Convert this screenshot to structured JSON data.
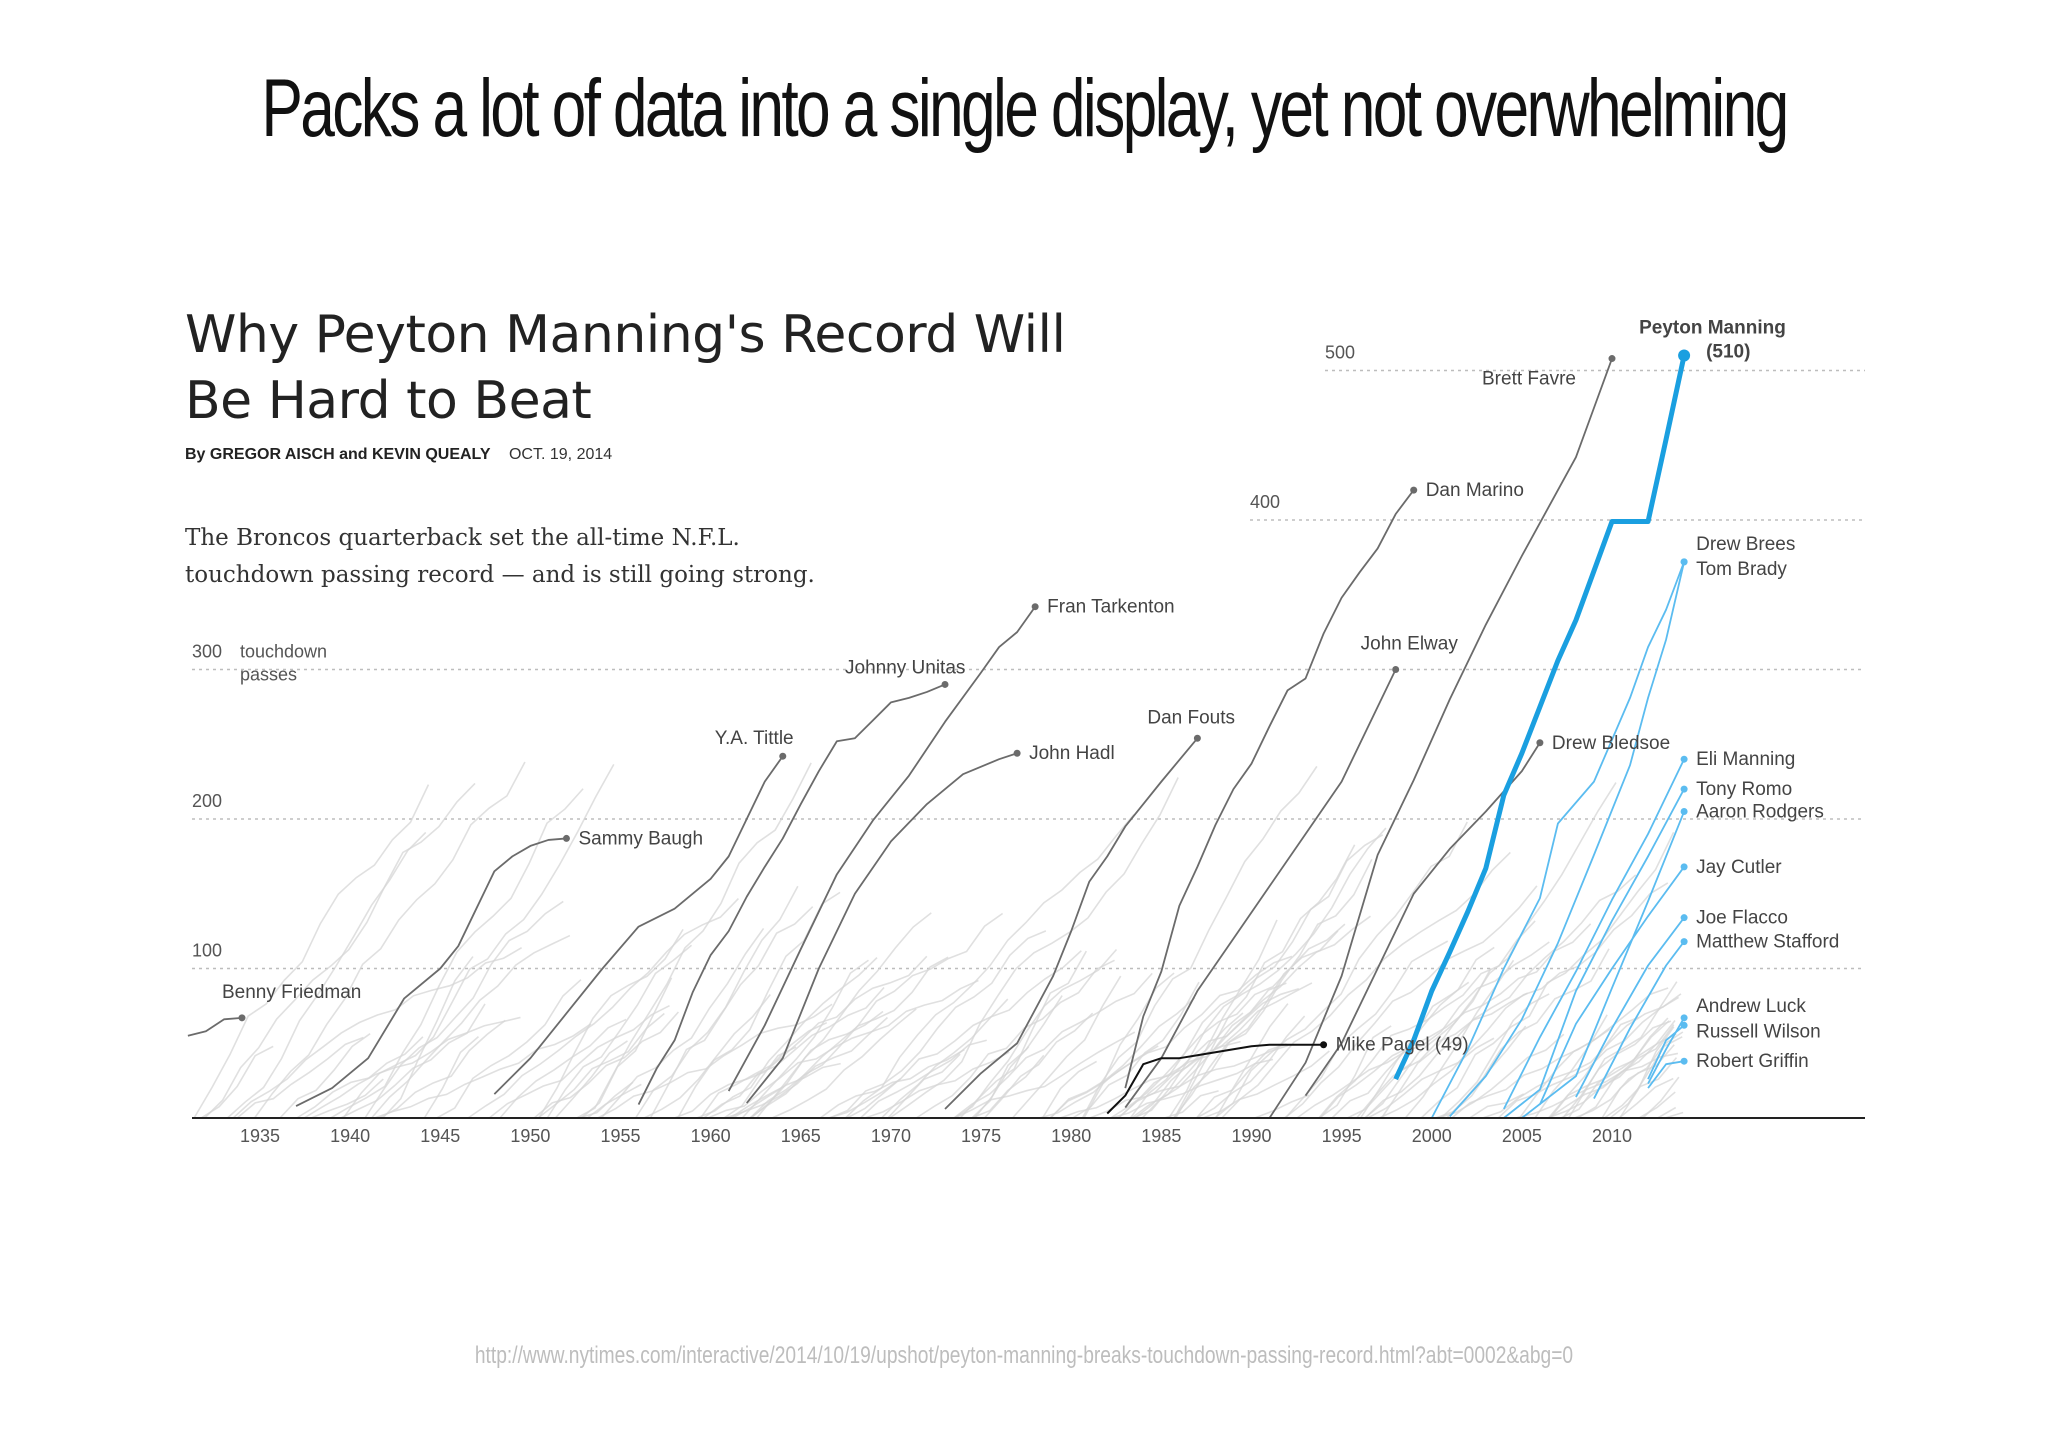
{
  "slide": {
    "title": "Packs a lot of data into a single display, yet not overwhelming",
    "source_url": "http://www.nytimes.com/interactive/2014/10/19/upshot/peyton-manning-breaks-touchdown-passing-record.html?abt=0002&abg=0"
  },
  "graphic": {
    "headline": "Why Peyton Manning's Record Will Be Hard to Beat",
    "byline_names": "By GREGOR AISCH and KEVIN QUEALY",
    "byline_date": "OCT. 19, 2014",
    "dek": "The Broncos quarterback set the all-time N.F.L. touchdown passing record — and is still going strong."
  },
  "chart_data": {
    "type": "line",
    "title": "Why Peyton Manning's Record Will Be Hard to Beat",
    "ylabel": "touchdown passes",
    "xlim": [
      1931,
      2025
    ],
    "ylim": [
      0,
      510
    ],
    "x_ticks": [
      1935,
      1940,
      1945,
      1950,
      1955,
      1960,
      1965,
      1970,
      1975,
      1980,
      1985,
      1990,
      1995,
      2000,
      2005,
      2010
    ],
    "y_ticks": [
      100,
      200,
      300,
      400,
      500
    ],
    "grid": true,
    "colors": {
      "highlight": "#1a9fe0",
      "active": "#5bbcf0",
      "notable": "#6b6b6b",
      "background": "#d6d6d6",
      "focus": "#111111"
    },
    "series": [
      {
        "name": "Benny Friedman",
        "label": "Benny Friedman",
        "group": "notable",
        "x": [
          1931,
          1932,
          1933,
          1934
        ],
        "y": [
          55,
          58,
          66,
          67
        ]
      },
      {
        "name": "Sammy Baugh",
        "label": "Sammy Baugh",
        "group": "notable",
        "x": [
          1937,
          1939,
          1941,
          1943,
          1945,
          1946,
          1947,
          1948,
          1949,
          1950,
          1951,
          1952
        ],
        "y": [
          8,
          20,
          40,
          80,
          100,
          115,
          140,
          165,
          175,
          182,
          186,
          187
        ]
      },
      {
        "name": "Y.A. Tittle",
        "label": "Y.A. Tittle",
        "group": "notable",
        "x": [
          1948,
          1950,
          1952,
          1954,
          1956,
          1958,
          1960,
          1961,
          1962,
          1963,
          1964
        ],
        "y": [
          16,
          40,
          70,
          100,
          128,
          140,
          160,
          175,
          200,
          225,
          242
        ]
      },
      {
        "name": "Johnny Unitas",
        "label": "Johnny Unitas",
        "group": "notable",
        "x": [
          1956,
          1957,
          1958,
          1959,
          1960,
          1961,
          1962,
          1963,
          1964,
          1965,
          1966,
          1967,
          1968,
          1969,
          1970,
          1971,
          1972,
          1973
        ],
        "y": [
          9,
          33,
          52,
          84,
          109,
          125,
          148,
          168,
          187,
          210,
          232,
          252,
          254,
          266,
          278,
          281,
          285,
          290
        ]
      },
      {
        "name": "John Hadl",
        "label": "John Hadl",
        "group": "notable",
        "x": [
          1962,
          1964,
          1966,
          1968,
          1970,
          1972,
          1974,
          1976,
          1977
        ],
        "y": [
          10,
          40,
          100,
          150,
          185,
          210,
          230,
          240,
          244
        ]
      },
      {
        "name": "Fran Tarkenton",
        "label": "Fran Tarkenton",
        "group": "notable",
        "x": [
          1961,
          1963,
          1965,
          1967,
          1969,
          1971,
          1973,
          1975,
          1976,
          1977,
          1978
        ],
        "y": [
          18,
          62,
          113,
          163,
          199,
          229,
          265,
          298,
          315,
          325,
          342
        ]
      },
      {
        "name": "Dan Fouts",
        "label": "Dan Fouts",
        "group": "notable",
        "x": [
          1973,
          1975,
          1977,
          1979,
          1980,
          1981,
          1982,
          1983,
          1985,
          1987
        ],
        "y": [
          6,
          30,
          50,
          95,
          125,
          158,
          175,
          195,
          225,
          254
        ]
      },
      {
        "name": "Dan Marino",
        "label": "Dan Marino",
        "group": "notable",
        "x": [
          1983,
          1984,
          1985,
          1986,
          1987,
          1988,
          1989,
          1990,
          1991,
          1992,
          1993,
          1994,
          1995,
          1996,
          1997,
          1998,
          1999
        ],
        "y": [
          20,
          68,
          98,
          142,
          168,
          196,
          220,
          237,
          262,
          286,
          294,
          324,
          348,
          365,
          381,
          404,
          420
        ]
      },
      {
        "name": "John Elway",
        "label": "John Elway",
        "group": "notable",
        "x": [
          1983,
          1985,
          1987,
          1989,
          1991,
          1993,
          1995,
          1997,
          1998
        ],
        "y": [
          7,
          40,
          85,
          120,
          155,
          190,
          225,
          275,
          300
        ]
      },
      {
        "name": "Drew Bledsoe",
        "label": "Drew Bledsoe",
        "group": "notable",
        "x": [
          1993,
          1995,
          1997,
          1999,
          2001,
          2003,
          2005,
          2006
        ],
        "y": [
          15,
          50,
          100,
          150,
          180,
          205,
          232,
          251
        ]
      },
      {
        "name": "Brett Favre",
        "label": "Brett Favre",
        "group": "notable",
        "x": [
          1991,
          1993,
          1995,
          1997,
          1999,
          2001,
          2003,
          2005,
          2007,
          2008,
          2009,
          2010
        ],
        "y": [
          0,
          37,
          95,
          176,
          226,
          280,
          330,
          376,
          420,
          442,
          475,
          508
        ]
      },
      {
        "name": "Mike Pagel",
        "label": "Mike Pagel (49)",
        "group": "focus",
        "x": [
          1982,
          1983,
          1984,
          1985,
          1986,
          1987,
          1988,
          1990,
          1991,
          1994
        ],
        "y": [
          3,
          15,
          36,
          40,
          40,
          42,
          44,
          48,
          49,
          49
        ]
      },
      {
        "name": "Peyton Manning",
        "label": "Peyton Manning\n(510)",
        "group": "highlight",
        "x": [
          1998,
          1999,
          2000,
          2001,
          2002,
          2003,
          2004,
          2005,
          2006,
          2007,
          2008,
          2009,
          2010,
          2012,
          2013,
          2014
        ],
        "y": [
          26,
          52,
          85,
          111,
          138,
          167,
          216,
          244,
          275,
          306,
          333,
          366,
          399,
          399,
          454,
          510
        ]
      },
      {
        "name": "Drew Brees",
        "label": "Drew Brees",
        "group": "active",
        "x": [
          2001,
          2003,
          2005,
          2007,
          2009,
          2011,
          2012,
          2013,
          2014
        ],
        "y": [
          1,
          28,
          66,
          117,
          176,
          236,
          281,
          320,
          372
        ]
      },
      {
        "name": "Tom Brady",
        "label": "Tom Brady",
        "group": "active",
        "x": [
          2000,
          2002,
          2004,
          2006,
          2007,
          2009,
          2011,
          2012,
          2013,
          2014
        ],
        "y": [
          0,
          46,
          100,
          147,
          197,
          225,
          281,
          315,
          340,
          372
        ]
      },
      {
        "name": "Eli Manning",
        "label": "Eli Manning",
        "group": "active",
        "x": [
          2004,
          2006,
          2008,
          2010,
          2012,
          2014
        ],
        "y": [
          6,
          54,
          98,
          146,
          190,
          240
        ]
      },
      {
        "name": "Tony Romo",
        "label": "Tony Romo",
        "group": "active",
        "x": [
          2004,
          2006,
          2008,
          2010,
          2012,
          2014
        ],
        "y": [
          0,
          19,
          85,
          132,
          175,
          220
        ]
      },
      {
        "name": "Aaron Rodgers",
        "label": "Aaron Rodgers",
        "group": "active",
        "x": [
          2005,
          2008,
          2010,
          2012,
          2014
        ],
        "y": [
          0,
          28,
          87,
          145,
          205
        ]
      },
      {
        "name": "Jay Cutler",
        "label": "Jay Cutler",
        "group": "active",
        "x": [
          2006,
          2008,
          2010,
          2012,
          2014
        ],
        "y": [
          9,
          63,
          100,
          135,
          168
        ]
      },
      {
        "name": "Joe Flacco",
        "label": "Joe Flacco",
        "group": "active",
        "x": [
          2008,
          2010,
          2012,
          2014
        ],
        "y": [
          14,
          60,
          102,
          134
        ]
      },
      {
        "name": "Matthew Stafford",
        "label": "Matthew Stafford",
        "group": "active",
        "x": [
          2009,
          2011,
          2013,
          2014
        ],
        "y": [
          13,
          60,
          102,
          118
        ]
      },
      {
        "name": "Andrew Luck",
        "label": "Andrew Luck",
        "group": "active",
        "x": [
          2012,
          2013,
          2014
        ],
        "y": [
          23,
          46,
          67
        ]
      },
      {
        "name": "Russell Wilson",
        "label": "Russell Wilson",
        "group": "active",
        "x": [
          2012,
          2013,
          2014
        ],
        "y": [
          26,
          52,
          62
        ]
      },
      {
        "name": "Robert Griffin",
        "label": "Robert Griffin",
        "group": "active",
        "x": [
          2012,
          2013,
          2014
        ],
        "y": [
          20,
          36,
          38
        ]
      }
    ]
  }
}
